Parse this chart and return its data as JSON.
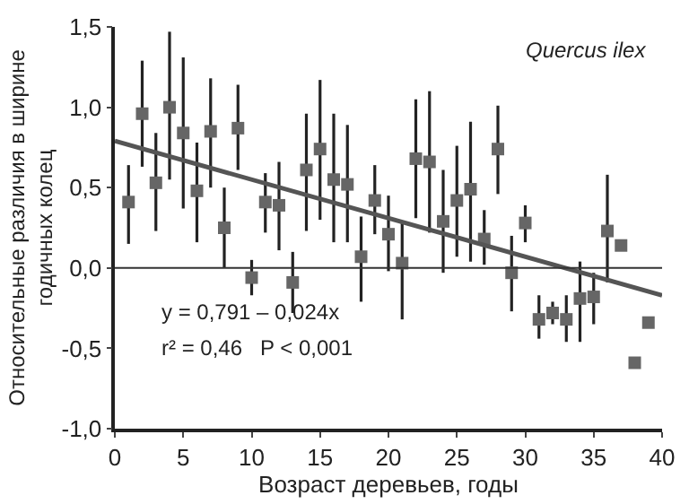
{
  "chart_data": {
    "type": "scatter",
    "xlabel": "Возраст деревьев, годы",
    "ylabel": "Относительные различия в ширине\nгодичных колец",
    "xlim": [
      0,
      40
    ],
    "xticks": [
      0,
      5,
      10,
      15,
      20,
      25,
      30,
      35,
      40
    ],
    "ylim": [
      -1.0,
      1.5
    ],
    "yticks": [
      {
        "value": -1.0,
        "label": "-1,0"
      },
      {
        "value": -0.5,
        "label": "-0,5"
      },
      {
        "value": 0.0,
        "label": "0,0"
      },
      {
        "value": 0.5,
        "label": "0,5"
      },
      {
        "value": 1.0,
        "label": "1,0"
      },
      {
        "value": 1.5,
        "label": "1,5"
      }
    ],
    "marker": "square",
    "ref_lines": [
      {
        "axis": "y",
        "value": 0,
        "color": "#333333"
      }
    ],
    "annotations": [
      "Quercus ilex",
      "y = 0,791 – 0,024x",
      "r² = 0,46   P < 0,001"
    ],
    "series": [
      {
        "color": "#666666",
        "x": [
          1,
          2,
          3,
          4,
          5,
          6,
          7,
          8,
          9,
          10,
          11,
          12,
          13,
          14,
          15,
          16,
          17,
          18,
          19,
          20,
          21,
          22,
          23,
          24,
          25,
          26,
          27,
          28,
          29,
          30,
          31,
          32,
          33,
          34,
          35,
          36,
          37,
          38,
          39
        ],
        "values": [
          0.41,
          0.96,
          0.53,
          1.0,
          0.84,
          0.48,
          0.85,
          0.25,
          0.87,
          -0.06,
          0.41,
          0.39,
          -0.09,
          0.61,
          0.74,
          0.55,
          0.52,
          0.07,
          0.42,
          0.21,
          0.03,
          0.68,
          0.66,
          0.29,
          0.42,
          0.49,
          0.18,
          0.74,
          -0.03,
          0.28,
          -0.32,
          -0.28,
          -0.32,
          -0.19,
          -0.18,
          0.23,
          0.14,
          -0.59,
          -0.34
        ],
        "errors": [
          [
            0.15,
            0.64
          ],
          [
            0.63,
            1.29
          ],
          [
            0.23,
            0.84
          ],
          [
            0.55,
            1.47
          ],
          [
            0.37,
            1.31
          ],
          [
            0.16,
            0.78
          ],
          [
            0.5,
            1.18
          ],
          [
            0.0,
            0.5
          ],
          [
            0.61,
            1.14
          ],
          [
            -0.17,
            0.05
          ],
          [
            0.22,
            0.59
          ],
          [
            0.11,
            0.66
          ],
          [
            -0.28,
            0.1
          ],
          [
            0.23,
            0.96
          ],
          [
            0.3,
            1.17
          ],
          [
            0.16,
            0.96
          ],
          [
            0.16,
            0.89
          ],
          [
            -0.21,
            0.32
          ],
          [
            0.21,
            0.64
          ],
          [
            -0.02,
            0.45
          ],
          [
            -0.32,
            0.29
          ],
          [
            0.31,
            1.05
          ],
          [
            0.22,
            1.1
          ],
          [
            -0.03,
            0.61
          ],
          [
            0.07,
            0.76
          ],
          [
            0.04,
            0.91
          ],
          [
            0.02,
            0.36
          ],
          [
            0.46,
            1.01
          ],
          [
            -0.27,
            0.2
          ],
          [
            0.16,
            0.39
          ],
          [
            -0.44,
            -0.17
          ],
          [
            -0.35,
            -0.21
          ],
          [
            -0.46,
            -0.17
          ],
          [
            -0.46,
            0.04
          ],
          [
            -0.35,
            -0.03
          ],
          [
            -0.09,
            0.58
          ],
          null,
          null,
          null
        ]
      },
      {
        "type": "line",
        "color": "#555555",
        "x": [
          0,
          40
        ],
        "values": [
          0.79,
          -0.17
        ],
        "marker": "none",
        "line_style": "solid"
      }
    ]
  }
}
